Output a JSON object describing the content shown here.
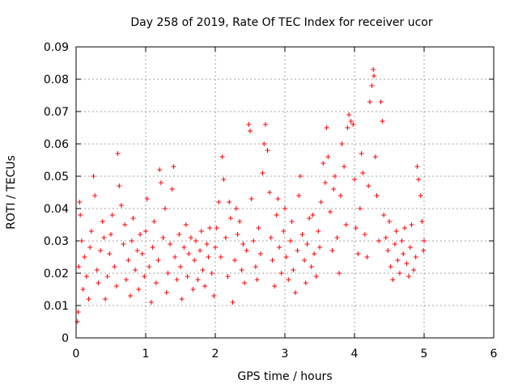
{
  "chart_data": {
    "type": "scatter",
    "title": "Day 258 of 2019, Rate Of TEC Index for receiver ucor",
    "xlabel": "GPS time / hours",
    "ylabel": "ROTI / TECUs",
    "xlim": [
      0,
      6
    ],
    "ylim": [
      0,
      0.09
    ],
    "xticks": [
      0,
      1,
      2,
      3,
      4,
      5,
      6
    ],
    "xtick_labels": [
      "0",
      "1",
      "2",
      "3",
      "4",
      "5",
      "6"
    ],
    "yticks": [
      0,
      0.01,
      0.02,
      0.03,
      0.04,
      0.05,
      0.06,
      0.07,
      0.08,
      0.09
    ],
    "ytick_labels": [
      "0",
      "0.01",
      "0.02",
      "0.03",
      "0.04",
      "0.05",
      "0.06",
      "0.07",
      "0.08",
      "0.09"
    ],
    "grid": true,
    "marker": "plus",
    "marker_color": "#ff0000",
    "series": [
      {
        "name": "ROTI",
        "points": [
          [
            0.02,
            0.005
          ],
          [
            0.03,
            0.008
          ],
          [
            0.05,
            0.042
          ],
          [
            0.06,
            0.038
          ],
          [
            0.04,
            0.022
          ],
          [
            0.08,
            0.03
          ],
          [
            0.1,
            0.015
          ],
          [
            0.12,
            0.025
          ],
          [
            0.15,
            0.019
          ],
          [
            0.18,
            0.012
          ],
          [
            0.2,
            0.028
          ],
          [
            0.22,
            0.033
          ],
          [
            0.25,
            0.05
          ],
          [
            0.27,
            0.044
          ],
          [
            0.3,
            0.021
          ],
          [
            0.32,
            0.017
          ],
          [
            0.35,
            0.027
          ],
          [
            0.38,
            0.036
          ],
          [
            0.4,
            0.031
          ],
          [
            0.42,
            0.012
          ],
          [
            0.45,
            0.019
          ],
          [
            0.48,
            0.026
          ],
          [
            0.5,
            0.032
          ],
          [
            0.52,
            0.038
          ],
          [
            0.55,
            0.022
          ],
          [
            0.58,
            0.016
          ],
          [
            0.6,
            0.057
          ],
          [
            0.62,
            0.047
          ],
          [
            0.65,
            0.041
          ],
          [
            0.68,
            0.029
          ],
          [
            0.7,
            0.035
          ],
          [
            0.72,
            0.018
          ],
          [
            0.75,
            0.024
          ],
          [
            0.78,
            0.013
          ],
          [
            0.8,
            0.03
          ],
          [
            0.82,
            0.037
          ],
          [
            0.85,
            0.021
          ],
          [
            0.88,
            0.027
          ],
          [
            0.9,
            0.015
          ],
          [
            0.92,
            0.032
          ],
          [
            0.95,
            0.026
          ],
          [
            0.98,
            0.019
          ],
          [
            1.0,
            0.033
          ],
          [
            1.02,
            0.043
          ],
          [
            1.05,
            0.022
          ],
          [
            1.08,
            0.011
          ],
          [
            1.1,
            0.028
          ],
          [
            1.12,
            0.036
          ],
          [
            1.15,
            0.017
          ],
          [
            1.18,
            0.024
          ],
          [
            1.2,
            0.052
          ],
          [
            1.22,
            0.048
          ],
          [
            1.25,
            0.031
          ],
          [
            1.28,
            0.04
          ],
          [
            1.3,
            0.014
          ],
          [
            1.32,
            0.02
          ],
          [
            1.35,
            0.029
          ],
          [
            1.38,
            0.046
          ],
          [
            1.4,
            0.053
          ],
          [
            1.42,
            0.025
          ],
          [
            1.45,
            0.018
          ],
          [
            1.48,
            0.032
          ],
          [
            1.5,
            0.022
          ],
          [
            1.52,
            0.012
          ],
          [
            1.55,
            0.028
          ],
          [
            1.58,
            0.035
          ],
          [
            1.6,
            0.019
          ],
          [
            1.62,
            0.026
          ],
          [
            1.65,
            0.031
          ],
          [
            1.68,
            0.015
          ],
          [
            1.7,
            0.024
          ],
          [
            1.72,
            0.03
          ],
          [
            1.75,
            0.018
          ],
          [
            1.78,
            0.027
          ],
          [
            1.8,
            0.033
          ],
          [
            1.82,
            0.021
          ],
          [
            1.85,
            0.016
          ],
          [
            1.88,
            0.029
          ],
          [
            1.9,
            0.025
          ],
          [
            1.92,
            0.034
          ],
          [
            1.95,
            0.02
          ],
          [
            1.98,
            0.013
          ],
          [
            2.0,
            0.028
          ],
          [
            2.02,
            0.034
          ],
          [
            2.05,
            0.042
          ],
          [
            2.08,
            0.025
          ],
          [
            2.1,
            0.056
          ],
          [
            2.12,
            0.049
          ],
          [
            2.15,
            0.031
          ],
          [
            2.18,
            0.019
          ],
          [
            2.2,
            0.042
          ],
          [
            2.22,
            0.037
          ],
          [
            2.25,
            0.011
          ],
          [
            2.28,
            0.024
          ],
          [
            2.3,
            0.04
          ],
          [
            2.32,
            0.032
          ],
          [
            2.35,
            0.036
          ],
          [
            2.38,
            0.021
          ],
          [
            2.4,
            0.029
          ],
          [
            2.42,
            0.017
          ],
          [
            2.45,
            0.027
          ],
          [
            2.48,
            0.066
          ],
          [
            2.5,
            0.064
          ],
          [
            2.52,
            0.043
          ],
          [
            2.55,
            0.03
          ],
          [
            2.58,
            0.022
          ],
          [
            2.6,
            0.018
          ],
          [
            2.62,
            0.034
          ],
          [
            2.65,
            0.026
          ],
          [
            2.68,
            0.051
          ],
          [
            2.7,
            0.06
          ],
          [
            2.72,
            0.066
          ],
          [
            2.75,
            0.058
          ],
          [
            2.78,
            0.045
          ],
          [
            2.8,
            0.031
          ],
          [
            2.82,
            0.024
          ],
          [
            2.85,
            0.016
          ],
          [
            2.88,
            0.038
          ],
          [
            2.9,
            0.043
          ],
          [
            2.92,
            0.028
          ],
          [
            2.95,
            0.02
          ],
          [
            2.98,
            0.033
          ],
          [
            3.0,
            0.04
          ],
          [
            3.02,
            0.025
          ],
          [
            3.05,
            0.018
          ],
          [
            3.08,
            0.03
          ],
          [
            3.1,
            0.036
          ],
          [
            3.12,
            0.021
          ],
          [
            3.15,
            0.014
          ],
          [
            3.18,
            0.027
          ],
          [
            3.2,
            0.044
          ],
          [
            3.22,
            0.05
          ],
          [
            3.25,
            0.032
          ],
          [
            3.28,
            0.024
          ],
          [
            3.3,
            0.017
          ],
          [
            3.32,
            0.029
          ],
          [
            3.35,
            0.037
          ],
          [
            3.38,
            0.022
          ],
          [
            3.4,
            0.038
          ],
          [
            3.42,
            0.026
          ],
          [
            3.45,
            0.019
          ],
          [
            3.48,
            0.033
          ],
          [
            3.5,
            0.028
          ],
          [
            3.52,
            0.042
          ],
          [
            3.55,
            0.054
          ],
          [
            3.58,
            0.048
          ],
          [
            3.6,
            0.065
          ],
          [
            3.62,
            0.056
          ],
          [
            3.65,
            0.039
          ],
          [
            3.68,
            0.027
          ],
          [
            3.7,
            0.046
          ],
          [
            3.72,
            0.05
          ],
          [
            3.75,
            0.031
          ],
          [
            3.78,
            0.02
          ],
          [
            3.8,
            0.044
          ],
          [
            3.82,
            0.06
          ],
          [
            3.85,
            0.053
          ],
          [
            3.88,
            0.035
          ],
          [
            3.9,
            0.065
          ],
          [
            3.92,
            0.069
          ],
          [
            3.95,
            0.067
          ],
          [
            3.98,
            0.066
          ],
          [
            4.0,
            0.049
          ],
          [
            4.02,
            0.034
          ],
          [
            4.05,
            0.026
          ],
          [
            4.08,
            0.04
          ],
          [
            4.1,
            0.057
          ],
          [
            4.12,
            0.051
          ],
          [
            4.15,
            0.032
          ],
          [
            4.18,
            0.025
          ],
          [
            4.2,
            0.047
          ],
          [
            4.22,
            0.073
          ],
          [
            4.25,
            0.078
          ],
          [
            4.27,
            0.083
          ],
          [
            4.28,
            0.081
          ],
          [
            4.3,
            0.056
          ],
          [
            4.32,
            0.044
          ],
          [
            4.35,
            0.03
          ],
          [
            4.38,
            0.073
          ],
          [
            4.4,
            0.067
          ],
          [
            4.42,
            0.038
          ],
          [
            4.45,
            0.031
          ],
          [
            4.48,
            0.027
          ],
          [
            4.5,
            0.036
          ],
          [
            4.52,
            0.022
          ],
          [
            4.55,
            0.018
          ],
          [
            4.58,
            0.029
          ],
          [
            4.6,
            0.033
          ],
          [
            4.62,
            0.024
          ],
          [
            4.65,
            0.02
          ],
          [
            4.68,
            0.03
          ],
          [
            4.7,
            0.026
          ],
          [
            4.72,
            0.034
          ],
          [
            4.75,
            0.023
          ],
          [
            4.78,
            0.019
          ],
          [
            4.8,
            0.028
          ],
          [
            4.82,
            0.035
          ],
          [
            4.85,
            0.021
          ],
          [
            4.88,
            0.025
          ],
          [
            4.9,
            0.053
          ],
          [
            4.92,
            0.049
          ],
          [
            4.95,
            0.044
          ],
          [
            4.97,
            0.036
          ],
          [
            4.99,
            0.027
          ],
          [
            5.0,
            0.03
          ]
        ]
      }
    ]
  }
}
